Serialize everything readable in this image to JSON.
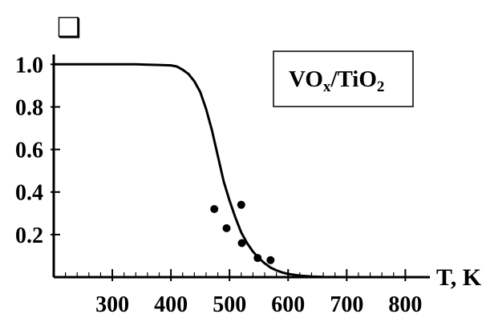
{
  "chart_data": {
    "type": "line",
    "title": "",
    "marker_symbol": "❑",
    "xlabel": "T, K",
    "ylabel": "",
    "xlim": [
      200,
      820
    ],
    "ylim": [
      0,
      1.02
    ],
    "x_ticks": [
      300,
      400,
      500,
      600,
      700,
      800
    ],
    "x_tick_labels": [
      "300",
      "400",
      "500",
      "600",
      "700",
      "800"
    ],
    "y_ticks": [
      0.2,
      0.4,
      0.6,
      0.8,
      1.0
    ],
    "y_tick_labels": [
      "0.2",
      "0.4",
      "0.6",
      "0.8",
      "1.0"
    ],
    "legend": {
      "base1": "VO",
      "sub1": "x",
      "mid": "/TiO",
      "sub2": "2",
      "placement": "top-right"
    },
    "series": [
      {
        "kind": "line",
        "x": [
          200,
          250,
          300,
          340,
          360,
          380,
          400,
          410,
          420,
          430,
          440,
          450,
          460,
          470,
          480,
          490,
          500,
          510,
          520,
          530,
          540,
          550,
          560,
          570,
          580,
          590,
          600,
          620,
          640,
          660,
          700,
          780
        ],
        "y": [
          1.0,
          1.0,
          1.0,
          1.0,
          0.998,
          0.997,
          0.995,
          0.99,
          0.975,
          0.955,
          0.92,
          0.87,
          0.79,
          0.69,
          0.57,
          0.45,
          0.36,
          0.28,
          0.21,
          0.16,
          0.12,
          0.09,
          0.065,
          0.045,
          0.032,
          0.022,
          0.015,
          0.007,
          0.003,
          0.001,
          0.0,
          0.0
        ]
      },
      {
        "kind": "scatter",
        "x": [
          474,
          495,
          520,
          521,
          548,
          570
        ],
        "y": [
          0.32,
          0.23,
          0.34,
          0.16,
          0.09,
          0.08
        ]
      }
    ]
  }
}
